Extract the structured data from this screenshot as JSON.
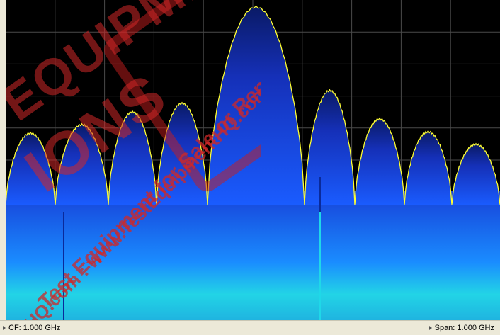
{
  "status": {
    "cf_label": "CF: 1.000 GHz",
    "span_label": "Span: 1.000 GHz",
    "cf_icon": "triangle-marker-icon",
    "span_icon": "triangle-marker-icon"
  },
  "watermark": {
    "brand_line1": "EQUIPMENT",
    "brand_line2": "IONS",
    "line1": "Test Equipment for Sale or Rental",
    "line2": "HQ.com : www.TestEquipmentHQ.com"
  },
  "display": {
    "background_color": "#000000",
    "grid_color": "#4a4a4a",
    "trace_color": "#ffff33",
    "spectrum_color_top": "#1a5cff",
    "spectrum_color_bottom": "#22d4e6"
  }
}
